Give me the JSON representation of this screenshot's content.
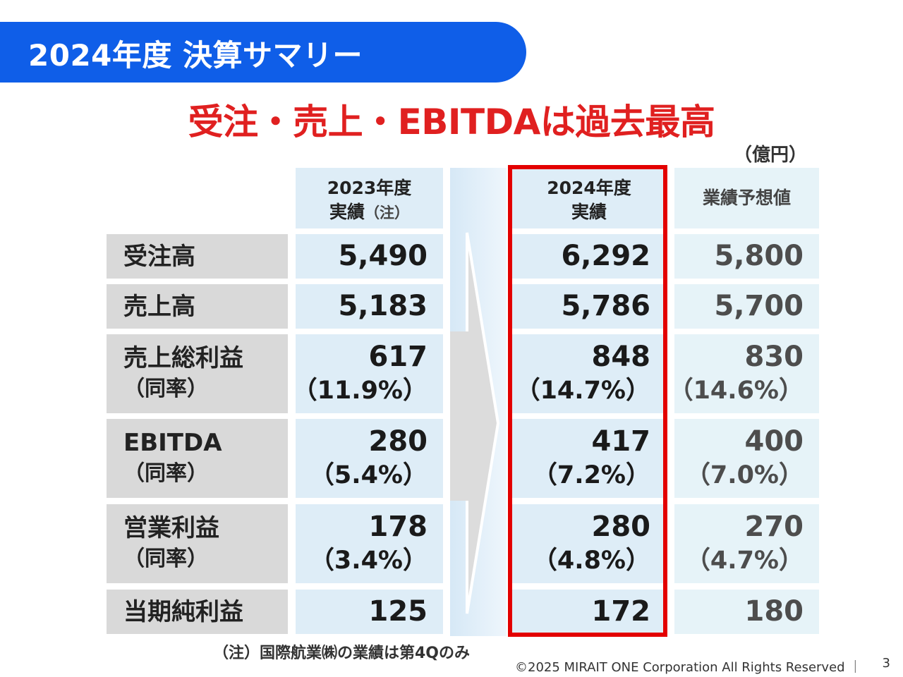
{
  "title": "2024年度 決算サマリー",
  "headline": "受注・売上・EBITDAは過去最高",
  "unit": "（億円）",
  "columns": {
    "fy2023": {
      "line1": "2023年度",
      "line2": "実績",
      "note": "（注）"
    },
    "fy2024": {
      "line1": "2024年度",
      "line2": "実績"
    },
    "forecast": {
      "line1": "業績予想値"
    }
  },
  "rows": [
    {
      "label": "受注高",
      "sub": "",
      "fy2023": "5,490",
      "fy2023_pct": "",
      "fy2024": "6,292",
      "fy2024_pct": "",
      "forecast": "5,800",
      "forecast_pct": ""
    },
    {
      "label": "売上高",
      "sub": "",
      "fy2023": "5,183",
      "fy2023_pct": "",
      "fy2024": "5,786",
      "fy2024_pct": "",
      "forecast": "5,700",
      "forecast_pct": ""
    },
    {
      "label": "売上総利益",
      "sub": "（同率）",
      "fy2023": "617",
      "fy2023_pct": "（11.9%）",
      "fy2024": "848",
      "fy2024_pct": "（14.7%）",
      "forecast": "830",
      "forecast_pct": "（14.6%）"
    },
    {
      "label": "EBITDA",
      "sub": "（同率）",
      "fy2023": "280",
      "fy2023_pct": "（5.4%）",
      "fy2024": "417",
      "fy2024_pct": "（7.2%）",
      "forecast": "400",
      "forecast_pct": "（7.0%）"
    },
    {
      "label": "営業利益",
      "sub": "（同率）",
      "fy2023": "178",
      "fy2023_pct": "（3.4%）",
      "fy2024": "280",
      "fy2024_pct": "（4.8%）",
      "forecast": "270",
      "forecast_pct": "（4.7%）"
    },
    {
      "label": "当期純利益",
      "sub": "",
      "fy2023": "125",
      "fy2023_pct": "",
      "fy2024": "172",
      "fy2024_pct": "",
      "forecast": "180",
      "forecast_pct": ""
    }
  ],
  "footnote": "（注）国際航業㈱の業績は第4Qのみ",
  "copyright": "©2025 MIRAIT ONE Corporation All Rights Reserved ｜",
  "page_number": "3",
  "colors": {
    "title_bar": "#0f5ee8",
    "headline": "#e02020",
    "highlight_frame": "#e30000"
  }
}
